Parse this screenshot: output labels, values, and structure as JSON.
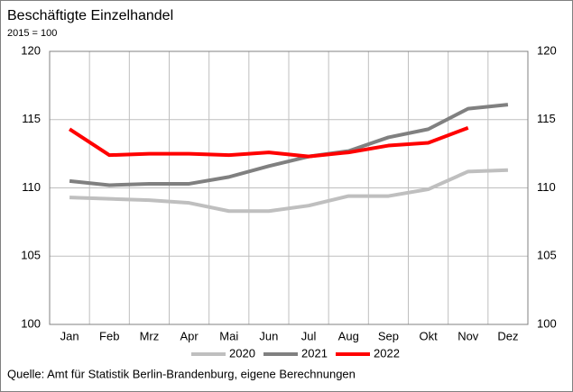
{
  "chart_data": {
    "type": "line",
    "title": "Beschäftigte Einzelhandel",
    "subtitle": "2015 = 100",
    "source": "Quelle: Amt für Statistik Berlin-Brandenburg, eigene Berechnungen",
    "categories": [
      "Jan",
      "Feb",
      "Mrz",
      "Apr",
      "Mai",
      "Jun",
      "Jul",
      "Aug",
      "Sep",
      "Okt",
      "Nov",
      "Dez"
    ],
    "series": [
      {
        "name": "2020",
        "color": "#bfbfbf",
        "values": [
          109.3,
          109.2,
          109.1,
          108.9,
          108.3,
          108.3,
          108.7,
          109.4,
          109.4,
          109.9,
          111.2,
          111.3
        ]
      },
      {
        "name": "2021",
        "color": "#808080",
        "values": [
          110.5,
          110.2,
          110.3,
          110.3,
          110.8,
          111.6,
          112.3,
          112.7,
          113.7,
          114.3,
          115.8,
          116.1
        ]
      },
      {
        "name": "2022",
        "color": "#ff0000",
        "values": [
          114.3,
          112.4,
          112.5,
          112.5,
          112.4,
          112.6,
          112.3,
          112.6,
          113.1,
          113.3,
          114.4,
          null
        ]
      }
    ],
    "ylim": [
      100,
      120
    ],
    "yticks": [
      100,
      105,
      110,
      115,
      120
    ],
    "y2lim": [
      100,
      120
    ],
    "y2ticks": [
      100,
      105,
      110,
      115,
      120
    ],
    "grid": true,
    "legend": "bottom"
  }
}
